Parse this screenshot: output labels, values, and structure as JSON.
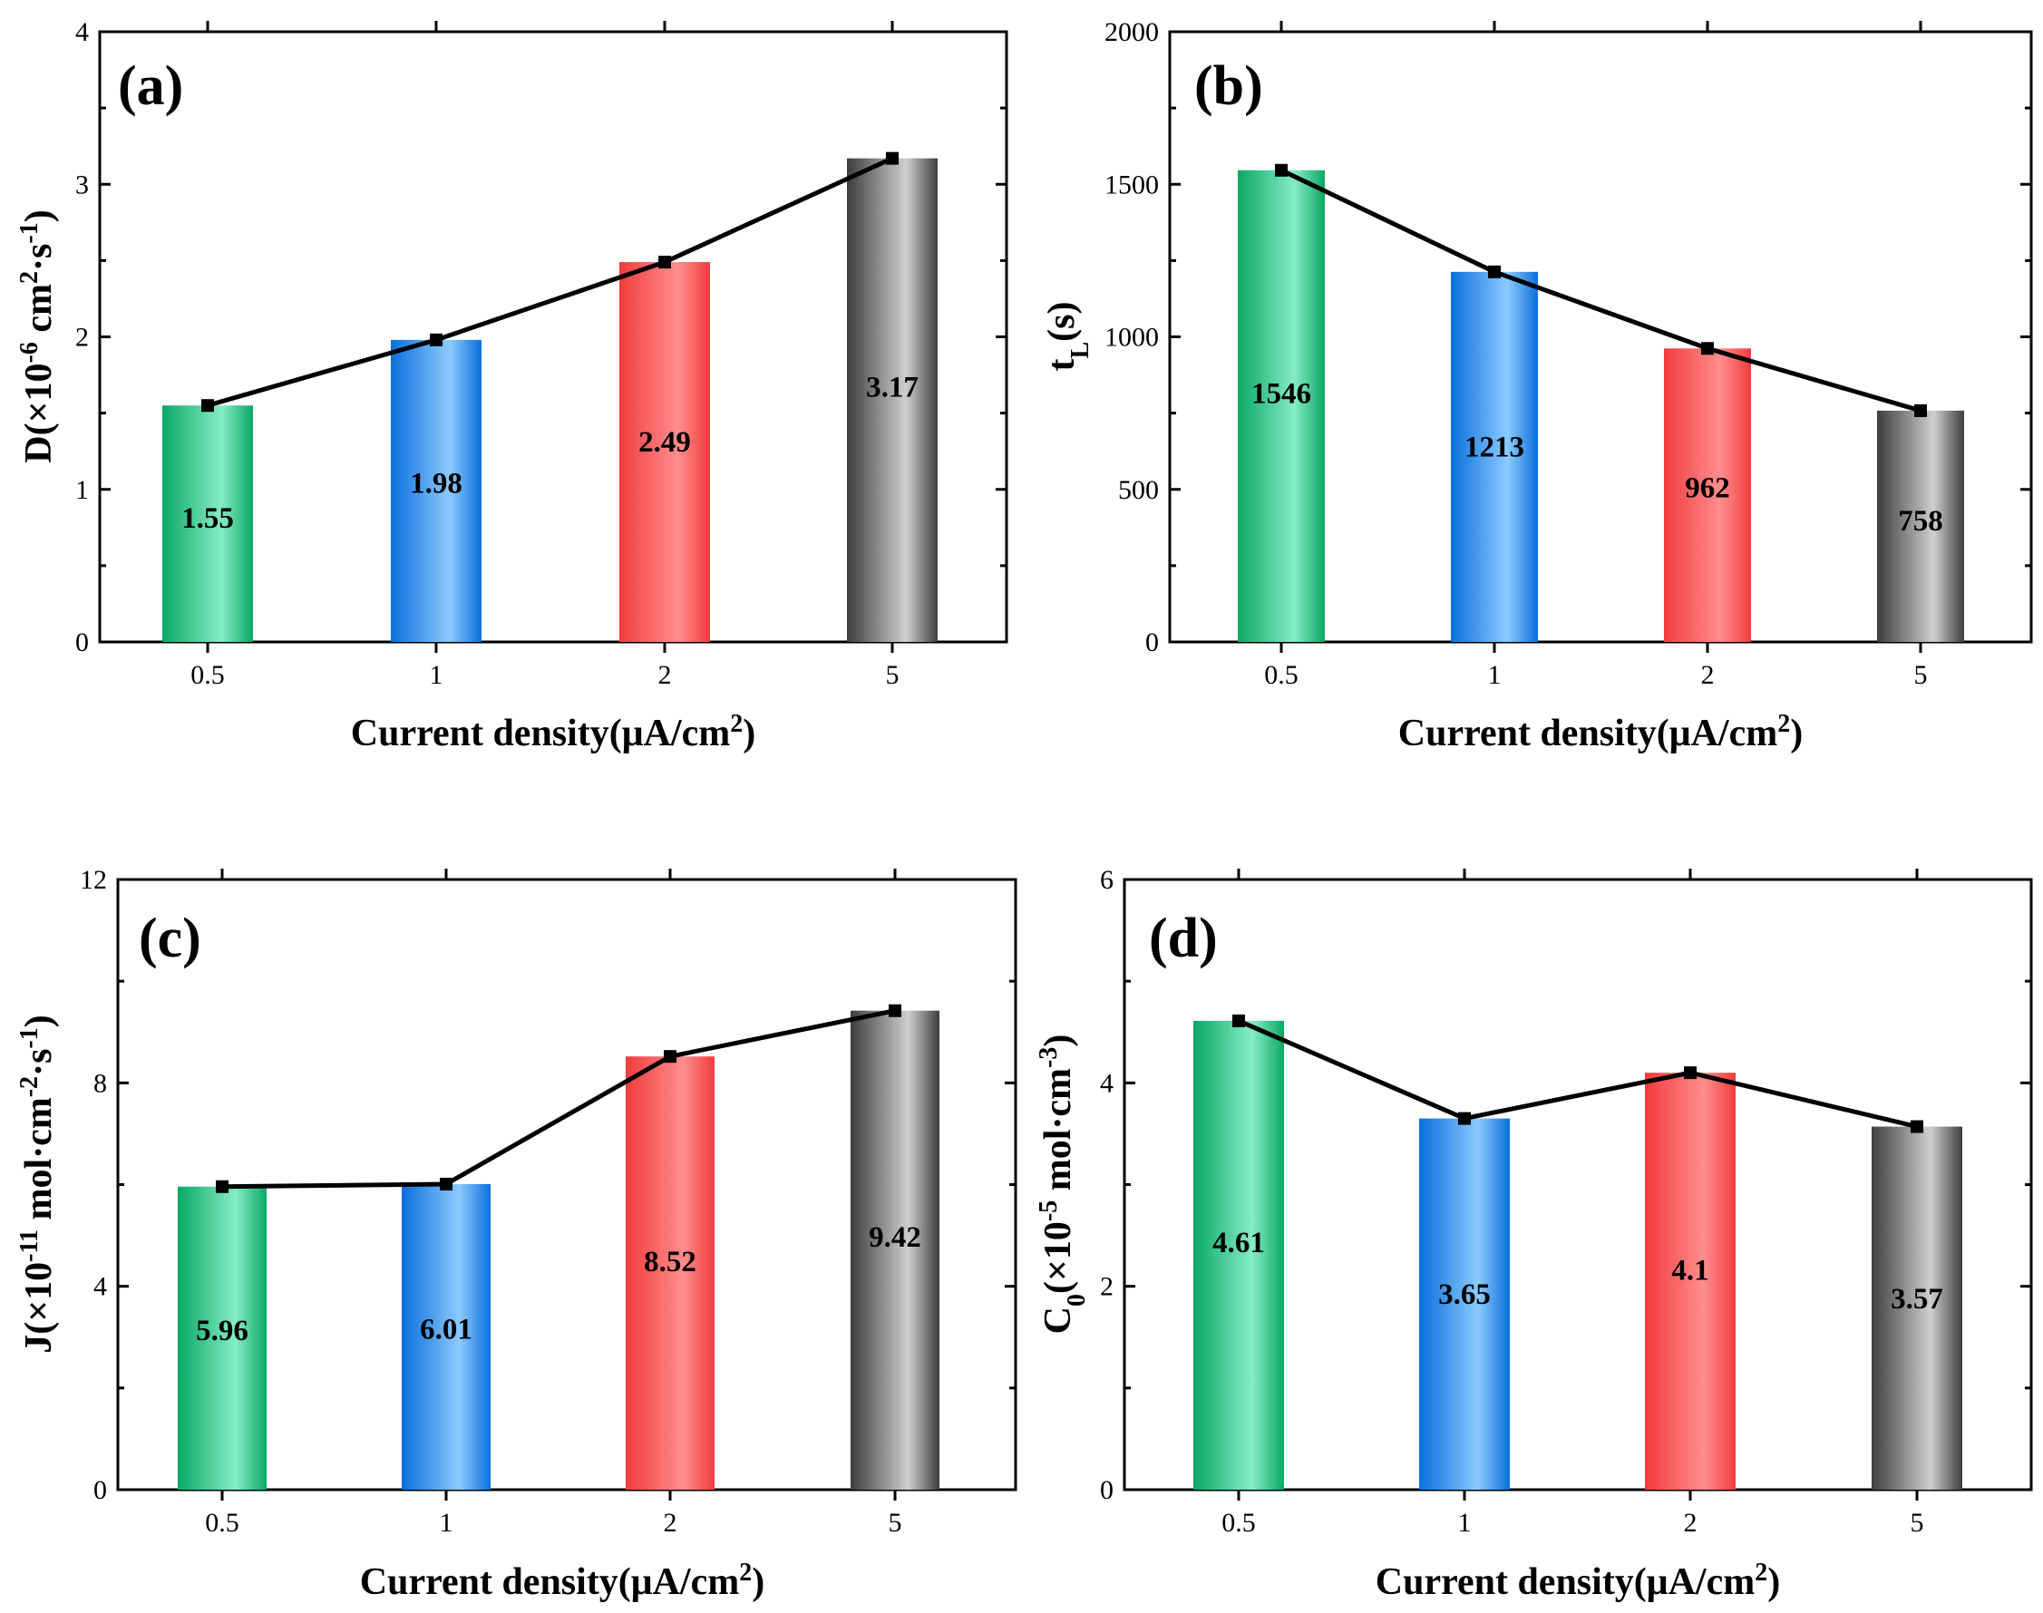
{
  "colors": {
    "green": [
      "#0aa865",
      "#86ecc6"
    ],
    "blue": [
      "#0a6fdc",
      "#8ccaff"
    ],
    "red": [
      "#f23c3c",
      "#ff8e8e"
    ],
    "gray": [
      "#3d3d3d",
      "#cfcfcf"
    ],
    "line": "#000000"
  },
  "chart_data": [
    {
      "type": "bar",
      "panel": "(a)",
      "categories": [
        "0.5",
        "1",
        "2",
        "5"
      ],
      "values": [
        1.55,
        1.98,
        2.49,
        3.17
      ],
      "value_labels": [
        "1.55",
        "1.98",
        "2.49",
        "3.17"
      ],
      "line_overlay": true,
      "xlabel": "Current density(μA/cm²)",
      "ylabel": "D(×10⁻⁶ cm²·s⁻¹)",
      "ylim": [
        0,
        4
      ],
      "yticks": [
        "0",
        "1",
        "2",
        "3",
        "4"
      ]
    },
    {
      "type": "bar",
      "panel": "(b)",
      "categories": [
        "0.5",
        "1",
        "2",
        "5"
      ],
      "values": [
        1546,
        1213,
        962,
        758
      ],
      "value_labels": [
        "1546",
        "1213",
        "962",
        "758"
      ],
      "line_overlay": true,
      "xlabel": "Current density(μA/cm²)",
      "ylabel": "t_L(s)",
      "ylim": [
        0,
        2000
      ],
      "yticks": [
        "0",
        "500",
        "1000",
        "1500",
        "2000"
      ]
    },
    {
      "type": "bar",
      "panel": "(c)",
      "categories": [
        "0.5",
        "1",
        "2",
        "5"
      ],
      "values": [
        5.96,
        6.01,
        8.52,
        9.42
      ],
      "value_labels": [
        "5.96",
        "6.01",
        "8.52",
        "9.42"
      ],
      "line_overlay": true,
      "xlabel": "Current density(μA/cm²)",
      "ylabel": "J(×10⁻¹¹ mol·cm⁻²·s⁻¹)",
      "ylim": [
        0,
        12
      ],
      "yticks": [
        "0",
        "4",
        "8",
        "12"
      ]
    },
    {
      "type": "bar",
      "panel": "(d)",
      "categories": [
        "0.5",
        "1",
        "2",
        "5"
      ],
      "values": [
        4.61,
        3.65,
        4.1,
        3.57
      ],
      "value_labels": [
        "4.61",
        "3.65",
        "4.1",
        "3.57"
      ],
      "line_overlay": true,
      "xlabel": "Current density(μA/cm²)",
      "ylabel": "C_0(×10⁻⁵ mol·cm⁻³)",
      "ylim": [
        0,
        6
      ],
      "yticks": [
        "0",
        "2",
        "4",
        "6"
      ]
    }
  ]
}
